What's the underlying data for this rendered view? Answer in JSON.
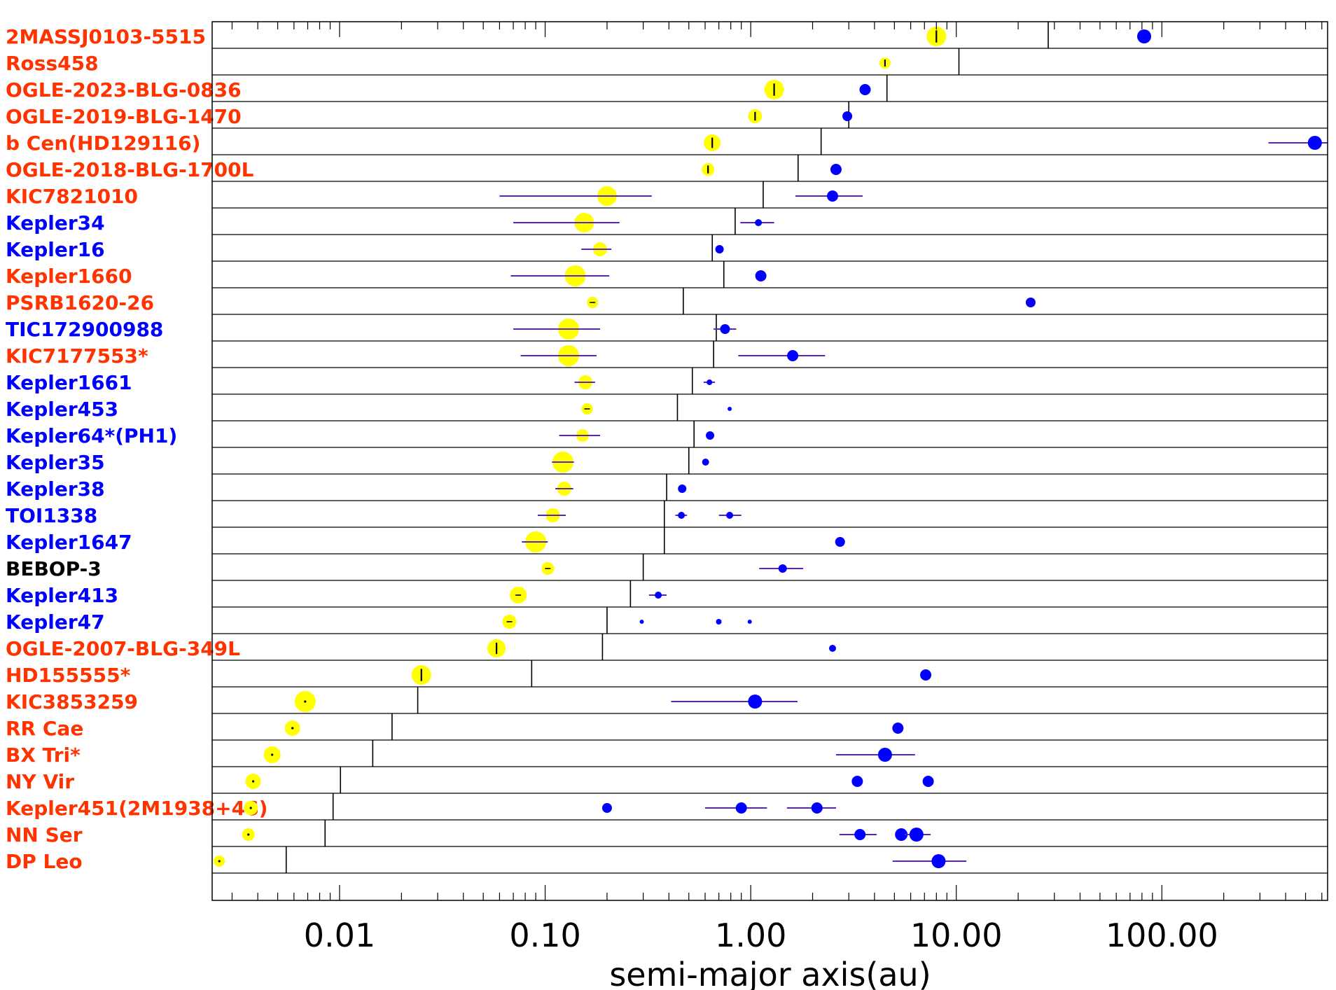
{
  "chart_data": {
    "type": "scatter",
    "xlabel": "semi-major axis(au)",
    "xscale": "log",
    "xlim": [
      0.0024,
      640
    ],
    "xticks": [
      {
        "value": 0.01,
        "label": "0.01"
      },
      {
        "value": 0.1,
        "label": "0.10"
      },
      {
        "value": 1,
        "label": "1.00"
      },
      {
        "value": 10,
        "label": "10.00"
      },
      {
        "value": 100,
        "label": "100.00"
      }
    ],
    "colors": {
      "red": "#ff3300",
      "blue": "#0000ff",
      "black": "#000000",
      "star": "#ffff00",
      "planet": "#0000ff",
      "errorbar": "#5a22c8"
    },
    "systems": [
      {
        "name": "2MASSJ0103-5515",
        "color": "red",
        "limit": 28,
        "star": {
          "a": 8.0,
          "r": 14,
          "mark": "|"
        },
        "planets": [
          {
            "a": 82,
            "r": 10
          }
        ]
      },
      {
        "name": "Ross458",
        "color": "red",
        "limit": 10.3,
        "star": {
          "a": 4.5,
          "r": 8,
          "mark": "|"
        },
        "planets": []
      },
      {
        "name": "OGLE-2023-BLG-0836",
        "color": "red",
        "limit": 4.6,
        "star": {
          "a": 1.3,
          "r": 14,
          "mark": "|"
        },
        "planets": [
          {
            "a": 3.6,
            "r": 8
          }
        ]
      },
      {
        "name": "OGLE-2019-BLG-1470",
        "color": "red",
        "limit": 3.0,
        "star": {
          "a": 1.05,
          "r": 10,
          "mark": "|"
        },
        "planets": [
          {
            "a": 2.95,
            "r": 7
          }
        ]
      },
      {
        "name": "b Cen(HD129116)",
        "color": "red",
        "limit": 2.2,
        "star": {
          "a": 0.65,
          "r": 12,
          "mark": "|"
        },
        "planets": [
          {
            "a": 555,
            "r": 10,
            "err": [
              330,
              640
            ]
          }
        ]
      },
      {
        "name": "OGLE-2018-BLG-1700L",
        "color": "red",
        "limit": 1.7,
        "star": {
          "a": 0.62,
          "r": 9,
          "mark": "|"
        },
        "planets": [
          {
            "a": 2.6,
            "r": 8
          }
        ]
      },
      {
        "name": "KIC7821010",
        "color": "red",
        "limit": 1.15,
        "star": {
          "a": 0.2,
          "r": 14,
          "err": [
            0.06,
            0.33
          ]
        },
        "planets": [
          {
            "a": 2.5,
            "r": 8,
            "err": [
              1.65,
              3.5
            ]
          }
        ]
      },
      {
        "name": "Kepler34",
        "color": "blue",
        "limit": 0.84,
        "star": {
          "a": 0.155,
          "r": 14,
          "err": [
            0.07,
            0.23
          ]
        },
        "planets": [
          {
            "a": 1.09,
            "r": 5,
            "err": [
              0.89,
              1.3
            ]
          }
        ]
      },
      {
        "name": "Kepler16",
        "color": "blue",
        "limit": 0.65,
        "star": {
          "a": 0.185,
          "r": 10,
          "err": [
            0.15,
            0.21
          ]
        },
        "planets": [
          {
            "a": 0.705,
            "r": 6
          }
        ]
      },
      {
        "name": "Kepler1660",
        "color": "red",
        "limit": 0.74,
        "star": {
          "a": 0.14,
          "r": 15,
          "err": [
            0.068,
            0.205
          ]
        },
        "planets": [
          {
            "a": 1.12,
            "r": 8
          }
        ]
      },
      {
        "name": "PSRB1620-26",
        "color": "red",
        "limit": 0.47,
        "star": {
          "a": 0.17,
          "r": 8,
          "mark": "-"
        },
        "planets": [
          {
            "a": 23,
            "r": 7
          }
        ]
      },
      {
        "name": "TIC172900988",
        "color": "blue",
        "limit": 0.68,
        "star": {
          "a": 0.13,
          "r": 15,
          "err": [
            0.07,
            0.185
          ]
        },
        "planets": [
          {
            "a": 0.75,
            "r": 7,
            "err": [
              0.66,
              0.85
            ]
          }
        ]
      },
      {
        "name": "KIC7177553*",
        "color": "red",
        "limit": 0.66,
        "star": {
          "a": 0.13,
          "r": 15,
          "err": [
            0.076,
            0.178
          ]
        },
        "planets": [
          {
            "a": 1.6,
            "r": 8,
            "err": [
              0.87,
              2.3
            ]
          }
        ]
      },
      {
        "name": "Kepler1661",
        "color": "blue",
        "limit": 0.52,
        "star": {
          "a": 0.157,
          "r": 10,
          "err": [
            0.139,
            0.175
          ]
        },
        "planets": [
          {
            "a": 0.63,
            "r": 4,
            "err": [
              0.59,
              0.67
            ]
          }
        ]
      },
      {
        "name": "Kepler453",
        "color": "blue",
        "limit": 0.44,
        "star": {
          "a": 0.16,
          "r": 8,
          "mark": "-"
        },
        "planets": [
          {
            "a": 0.79,
            "r": 3
          }
        ]
      },
      {
        "name": "Kepler64*(PH1)",
        "color": "blue",
        "limit": 0.53,
        "star": {
          "a": 0.152,
          "r": 9,
          "err": [
            0.117,
            0.185
          ]
        },
        "planets": [
          {
            "a": 0.634,
            "r": 6
          }
        ]
      },
      {
        "name": "Kepler35",
        "color": "blue",
        "limit": 0.5,
        "star": {
          "a": 0.122,
          "r": 15,
          "err": [
            0.108,
            0.138
          ]
        },
        "planets": [
          {
            "a": 0.603,
            "r": 5
          }
        ]
      },
      {
        "name": "Kepler38",
        "color": "blue",
        "limit": 0.39,
        "star": {
          "a": 0.124,
          "r": 10,
          "err": [
            0.112,
            0.137
          ]
        },
        "planets": [
          {
            "a": 0.464,
            "r": 6
          }
        ]
      },
      {
        "name": "TOI1338",
        "color": "blue",
        "limit": 0.38,
        "star": {
          "a": 0.109,
          "r": 10,
          "err": [
            0.092,
            0.126
          ]
        },
        "planets": [
          {
            "a": 0.46,
            "r": 5,
            "err": [
              0.43,
              0.49
            ]
          },
          {
            "a": 0.79,
            "r": 5,
            "err": [
              0.7,
              0.9
            ]
          }
        ]
      },
      {
        "name": "Kepler1647",
        "color": "blue",
        "limit": 0.38,
        "star": {
          "a": 0.09,
          "r": 15,
          "err": [
            0.077,
            0.103
          ]
        },
        "planets": [
          {
            "a": 2.72,
            "r": 7
          }
        ]
      },
      {
        "name": "BEBOP-3",
        "color": "black",
        "limit": 0.3,
        "star": {
          "a": 0.103,
          "r": 9,
          "mark": "-"
        },
        "planets": [
          {
            "a": 1.43,
            "r": 6,
            "err": [
              1.1,
              1.8
            ]
          }
        ]
      },
      {
        "name": "Kepler413",
        "color": "blue",
        "limit": 0.26,
        "star": {
          "a": 0.074,
          "r": 12,
          "mark": "-"
        },
        "planets": [
          {
            "a": 0.355,
            "r": 5,
            "err": [
              0.32,
              0.39
            ]
          }
        ]
      },
      {
        "name": "Kepler47",
        "color": "blue",
        "limit": 0.2,
        "star": {
          "a": 0.067,
          "r": 10,
          "mark": "-"
        },
        "planets": [
          {
            "a": 0.295,
            "r": 3
          },
          {
            "a": 0.699,
            "r": 4
          },
          {
            "a": 0.989,
            "r": 3
          }
        ]
      },
      {
        "name": "OGLE-2007-BLG-349L",
        "color": "red",
        "limit": 0.19,
        "star": {
          "a": 0.058,
          "r": 13,
          "mark": "|"
        },
        "planets": [
          {
            "a": 2.5,
            "r": 5
          }
        ]
      },
      {
        "name": "HD155555*",
        "color": "red",
        "limit": 0.086,
        "star": {
          "a": 0.025,
          "r": 14,
          "mark": "|"
        },
        "planets": [
          {
            "a": 7.1,
            "r": 8
          }
        ]
      },
      {
        "name": "KIC3853259",
        "color": "red",
        "limit": 0.024,
        "star": {
          "a": 0.0068,
          "r": 15,
          "mark": "."
        },
        "planets": [
          {
            "a": 1.05,
            "r": 10,
            "err": [
              0.41,
              1.69
            ]
          }
        ]
      },
      {
        "name": "RR Cae",
        "color": "red",
        "limit": 0.018,
        "star": {
          "a": 0.0059,
          "r": 11,
          "mark": "."
        },
        "planets": [
          {
            "a": 5.2,
            "r": 8
          }
        ]
      },
      {
        "name": "BX Tri*",
        "color": "red",
        "limit": 0.0145,
        "star": {
          "a": 0.0047,
          "r": 12,
          "mark": "."
        },
        "planets": [
          {
            "a": 4.5,
            "r": 10,
            "err": [
              2.6,
              6.3
            ]
          }
        ]
      },
      {
        "name": "NY Vir",
        "color": "red",
        "limit": 0.0101,
        "star": {
          "a": 0.0038,
          "r": 11,
          "mark": "."
        },
        "planets": [
          {
            "a": 3.3,
            "r": 8
          },
          {
            "a": 7.3,
            "r": 8
          }
        ]
      },
      {
        "name": "Kepler451(2M1938+46)",
        "color": "red",
        "limit": 0.0093,
        "star": {
          "a": 0.0037,
          "r": 10,
          "mark": "."
        },
        "planets": [
          {
            "a": 0.2,
            "r": 7
          },
          {
            "a": 0.9,
            "r": 8,
            "err": [
              0.6,
              1.2
            ]
          },
          {
            "a": 2.1,
            "r": 8,
            "err": [
              1.5,
              2.6
            ]
          }
        ]
      },
      {
        "name": "NN Ser",
        "color": "red",
        "limit": 0.0085,
        "star": {
          "a": 0.0036,
          "r": 9,
          "mark": "."
        },
        "planets": [
          {
            "a": 3.4,
            "r": 8,
            "err": [
              2.7,
              4.1
            ]
          },
          {
            "a": 5.4,
            "r": 9
          },
          {
            "a": 6.4,
            "r": 10,
            "err": [
              5.6,
              7.5
            ]
          }
        ]
      },
      {
        "name": "DP Leo",
        "color": "red",
        "limit": 0.0055,
        "star": {
          "a": 0.0026,
          "r": 8,
          "mark": "."
        },
        "planets": [
          {
            "a": 8.2,
            "r": 10,
            "err": [
              4.9,
              11.2
            ]
          }
        ]
      }
    ]
  }
}
